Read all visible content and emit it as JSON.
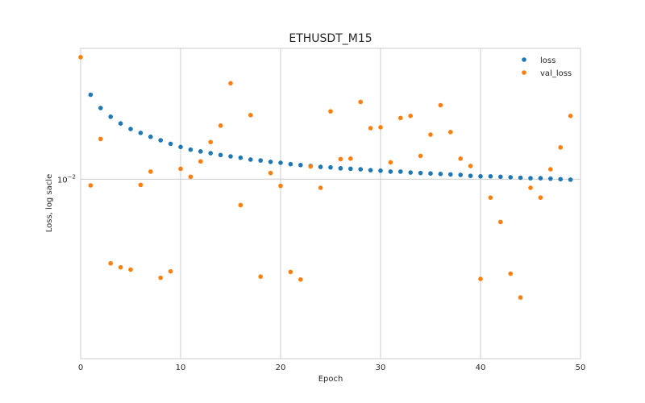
{
  "chart_data": {
    "type": "scatter",
    "title": "ETHUSDT_M15",
    "xlabel": "Epoch",
    "ylabel": "Loss, log sacle",
    "yscale": "log",
    "xlim": [
      0,
      50
    ],
    "ylim": [
      0.00686,
      0.01316
    ],
    "xticks": [
      0,
      10,
      20,
      30,
      40,
      50
    ],
    "xtick_labels": [
      "0",
      "10",
      "20",
      "30",
      "40",
      "50"
    ],
    "ytick_major": {
      "value": 0.01,
      "label_base": "10",
      "label_exp": "−2"
    },
    "grid": true,
    "legend_position": "top-right",
    "colors": {
      "loss": "#1f77b4",
      "val_loss": "#ff7f0e",
      "grid": "#cccccc",
      "spine": "#cccccc"
    },
    "series": [
      {
        "name": "loss",
        "x": [
          1,
          2,
          3,
          4,
          5,
          6,
          7,
          8,
          9,
          10,
          11,
          12,
          13,
          14,
          15,
          16,
          17,
          18,
          19,
          20,
          21,
          22,
          23,
          24,
          25,
          26,
          27,
          28,
          29,
          30,
          31,
          32,
          33,
          34,
          35,
          36,
          37,
          38,
          39,
          40,
          41,
          42,
          43,
          44,
          45,
          46,
          47,
          48,
          49
        ],
        "values": [
          0.01194,
          0.01161,
          0.0114,
          0.01124,
          0.01111,
          0.01102,
          0.01093,
          0.01085,
          0.01077,
          0.0107,
          0.01064,
          0.0106,
          0.01056,
          0.01052,
          0.01049,
          0.01046,
          0.01042,
          0.0104,
          0.01037,
          0.01035,
          0.01032,
          0.0103,
          0.01028,
          0.01026,
          0.01025,
          0.01023,
          0.01022,
          0.01021,
          0.01019,
          0.01018,
          0.01016,
          0.01016,
          0.01014,
          0.01013,
          0.01012,
          0.01011,
          0.0101,
          0.01009,
          0.01007,
          0.01006,
          0.01006,
          0.01005,
          0.01004,
          0.01003,
          0.01002,
          0.01002,
          0.01001,
          0.01,
          0.00999
        ]
      },
      {
        "name": "val_loss",
        "x": [
          0,
          1,
          2,
          3,
          4,
          5,
          6,
          7,
          8,
          9,
          10,
          11,
          12,
          13,
          14,
          15,
          16,
          17,
          18,
          19,
          20,
          21,
          22,
          23,
          24,
          25,
          26,
          27,
          28,
          29,
          30,
          31,
          32,
          33,
          34,
          35,
          36,
          37,
          38,
          39,
          40,
          41,
          42,
          43,
          44,
          45,
          46,
          47,
          48,
          49
        ],
        "values": [
          0.01292,
          0.00987,
          0.01088,
          0.00838,
          0.00831,
          0.00827,
          0.00988,
          0.01016,
          0.00813,
          0.00824,
          0.01022,
          0.01005,
          0.01038,
          0.01081,
          0.01119,
          0.01223,
          0.00947,
          0.01144,
          0.00815,
          0.01013,
          0.00986,
          0.00823,
          0.0081,
          0.01027,
          0.00982,
          0.01153,
          0.01043,
          0.01044,
          0.01176,
          0.01113,
          0.01115,
          0.01036,
          0.01137,
          0.01142,
          0.0105,
          0.01098,
          0.01168,
          0.01104,
          0.01044,
          0.01028,
          0.00811,
          0.00962,
          0.00914,
          0.0082,
          0.0078,
          0.00982,
          0.00962,
          0.01021,
          0.01069,
          0.01142
        ]
      }
    ]
  }
}
